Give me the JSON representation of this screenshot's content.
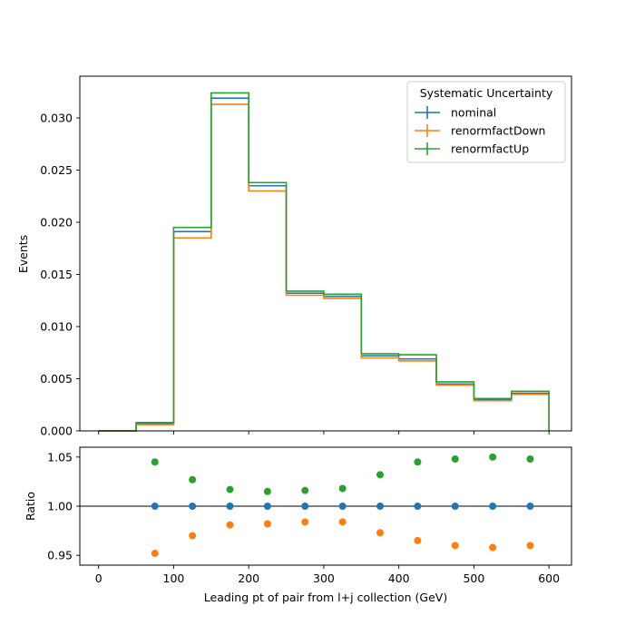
{
  "chart_data": [
    {
      "type": "step",
      "panel": "main",
      "bin_edges": [
        0,
        50,
        100,
        150,
        200,
        250,
        300,
        350,
        400,
        450,
        500,
        550,
        600
      ],
      "series": [
        {
          "name": "nominal",
          "color": "#1f77b4",
          "values": [
            0.0,
            0.0007,
            0.0191,
            0.0319,
            0.0235,
            0.0132,
            0.0129,
            0.0072,
            0.0069,
            0.0045,
            0.003,
            0.0036
          ]
        },
        {
          "name": "renormfactDown",
          "color": "#ff7f0e",
          "values": [
            0.0,
            0.0006,
            0.0185,
            0.0313,
            0.023,
            0.013,
            0.0127,
            0.007,
            0.0067,
            0.0044,
            0.0029,
            0.0035
          ]
        },
        {
          "name": "renormfactUp",
          "color": "#2ca02c",
          "values": [
            0.0,
            0.0008,
            0.0195,
            0.0324,
            0.0238,
            0.0134,
            0.0131,
            0.0074,
            0.0073,
            0.0047,
            0.0031,
            0.0038
          ]
        }
      ],
      "ylabel": "Events",
      "xlim": [
        -25,
        630
      ],
      "ylim": [
        0,
        0.034
      ],
      "yticks": [
        0.0,
        0.005,
        0.01,
        0.015,
        0.02,
        0.025,
        0.03
      ],
      "ytick_labels": [
        "0.000",
        "0.005",
        "0.010",
        "0.015",
        "0.020",
        "0.025",
        "0.030"
      ],
      "legend": {
        "title": "Systematic Uncertainty",
        "placement": "top-right",
        "entries": [
          "nominal",
          "renormfactDown",
          "renormfactUp"
        ]
      },
      "grid": false
    },
    {
      "type": "scatter",
      "panel": "ratio",
      "x": [
        75,
        125,
        175,
        225,
        275,
        325,
        375,
        425,
        475,
        525,
        575
      ],
      "series": [
        {
          "name": "nominal",
          "color": "#1f77b4",
          "values": [
            1.0,
            1.0,
            1.0,
            1.0,
            1.0,
            1.0,
            1.0,
            1.0,
            1.0,
            1.0,
            1.0
          ]
        },
        {
          "name": "renormfactDown",
          "color": "#ff7f0e",
          "values": [
            0.952,
            0.97,
            0.981,
            0.982,
            0.984,
            0.984,
            0.973,
            0.965,
            0.96,
            0.958,
            0.96
          ]
        },
        {
          "name": "renormfactUp",
          "color": "#2ca02c",
          "values": [
            1.045,
            1.027,
            1.017,
            1.015,
            1.016,
            1.018,
            1.032,
            1.045,
            1.048,
            1.05,
            1.048
          ]
        }
      ],
      "reference_line": 1.0,
      "xlabel": "Leading pt of pair from l+j collection (GeV)",
      "ylabel": "Ratio",
      "xlim": [
        -25,
        630
      ],
      "ylim": [
        0.94,
        1.06
      ],
      "xticks": [
        0,
        100,
        200,
        300,
        400,
        500,
        600
      ],
      "xtick_labels": [
        "0",
        "100",
        "200",
        "300",
        "400",
        "500",
        "600"
      ],
      "yticks": [
        0.95,
        1.0,
        1.05
      ],
      "ytick_labels": [
        "0.95",
        "1.00",
        "1.05"
      ],
      "grid": false
    }
  ]
}
